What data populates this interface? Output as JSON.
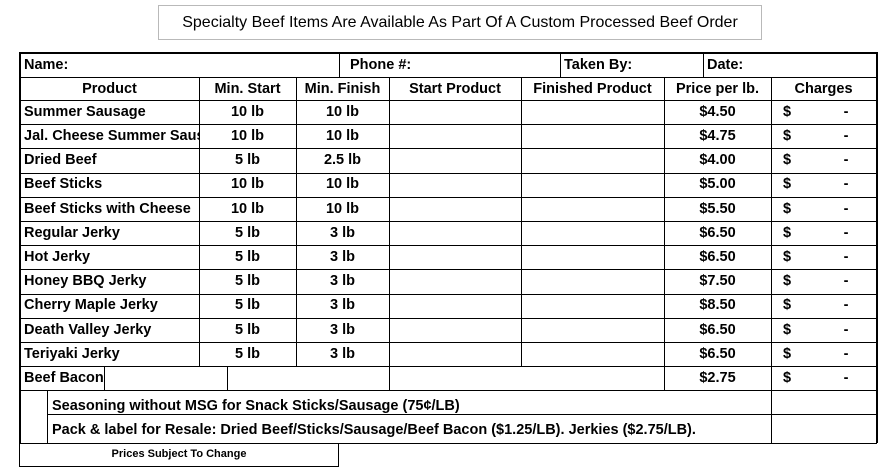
{
  "title": "Specialty Beef Items Are Available As Part Of A Custom Processed Beef Order",
  "form_fields": {
    "name": "Name:",
    "phone": "Phone #:",
    "taken_by": "Taken By:",
    "date": "Date:"
  },
  "columns": [
    "Product",
    "Min. Start",
    "Min. Finish",
    "Start Product",
    "Finished Product",
    "Price per lb.",
    "Charges"
  ],
  "rows": [
    {
      "product": "Summer Sausage",
      "min_start": "10 lb",
      "min_finish": "10 lb",
      "price": "$4.50",
      "charge_symbol": "$",
      "charge_value": "-"
    },
    {
      "product": "Jal. Cheese Summer Sausage",
      "min_start": "10 lb",
      "min_finish": "10 lb",
      "price": "$4.75",
      "charge_symbol": "$",
      "charge_value": "-"
    },
    {
      "product": "Dried Beef",
      "min_start": "5 lb",
      "min_finish": "2.5 lb",
      "price": "$4.00",
      "charge_symbol": "$",
      "charge_value": "-"
    },
    {
      "product": "Beef Sticks",
      "min_start": "10 lb",
      "min_finish": "10 lb",
      "price": "$5.00",
      "charge_symbol": "$",
      "charge_value": "-"
    },
    {
      "product": "Beef Sticks with Cheese",
      "min_start": "10 lb",
      "min_finish": "10 lb",
      "price": "$5.50",
      "charge_symbol": "$",
      "charge_value": "-"
    },
    {
      "product": "Regular Jerky",
      "min_start": "5 lb",
      "min_finish": "3 lb",
      "price": "$6.50",
      "charge_symbol": "$",
      "charge_value": "-"
    },
    {
      "product": "Hot Jerky",
      "min_start": "5 lb",
      "min_finish": "3 lb",
      "price": "$6.50",
      "charge_symbol": "$",
      "charge_value": "-"
    },
    {
      "product": "Honey BBQ Jerky",
      "min_start": "5 lb",
      "min_finish": "3 lb",
      "price": "$7.50",
      "charge_symbol": "$",
      "charge_value": "-"
    },
    {
      "product": "Cherry Maple Jerky",
      "min_start": "5 lb",
      "min_finish": "3 lb",
      "price": "$8.50",
      "charge_symbol": "$",
      "charge_value": "-"
    },
    {
      "product": "Death Valley Jerky",
      "min_start": "5 lb",
      "min_finish": "3 lb",
      "price": "$6.50",
      "charge_symbol": "$",
      "charge_value": "-"
    },
    {
      "product": "Teriyaki Jerky",
      "min_start": "5 lb",
      "min_finish": "3 lb",
      "price": "$6.50",
      "charge_symbol": "$",
      "charge_value": "-"
    }
  ],
  "bacon_row": {
    "product": "Beef Bacon",
    "price": "$2.75",
    "charge_symbol": "$",
    "charge_value": "-"
  },
  "notes": [
    "Seasoning without MSG for Snack Sticks/Sausage (75¢/LB)",
    "Pack & label for Resale:  Dried Beef/Sticks/Sausage/Beef Bacon ($1.25/LB).  Jerkies ($2.75/LB)."
  ],
  "footer": "Prices Subject To Change"
}
